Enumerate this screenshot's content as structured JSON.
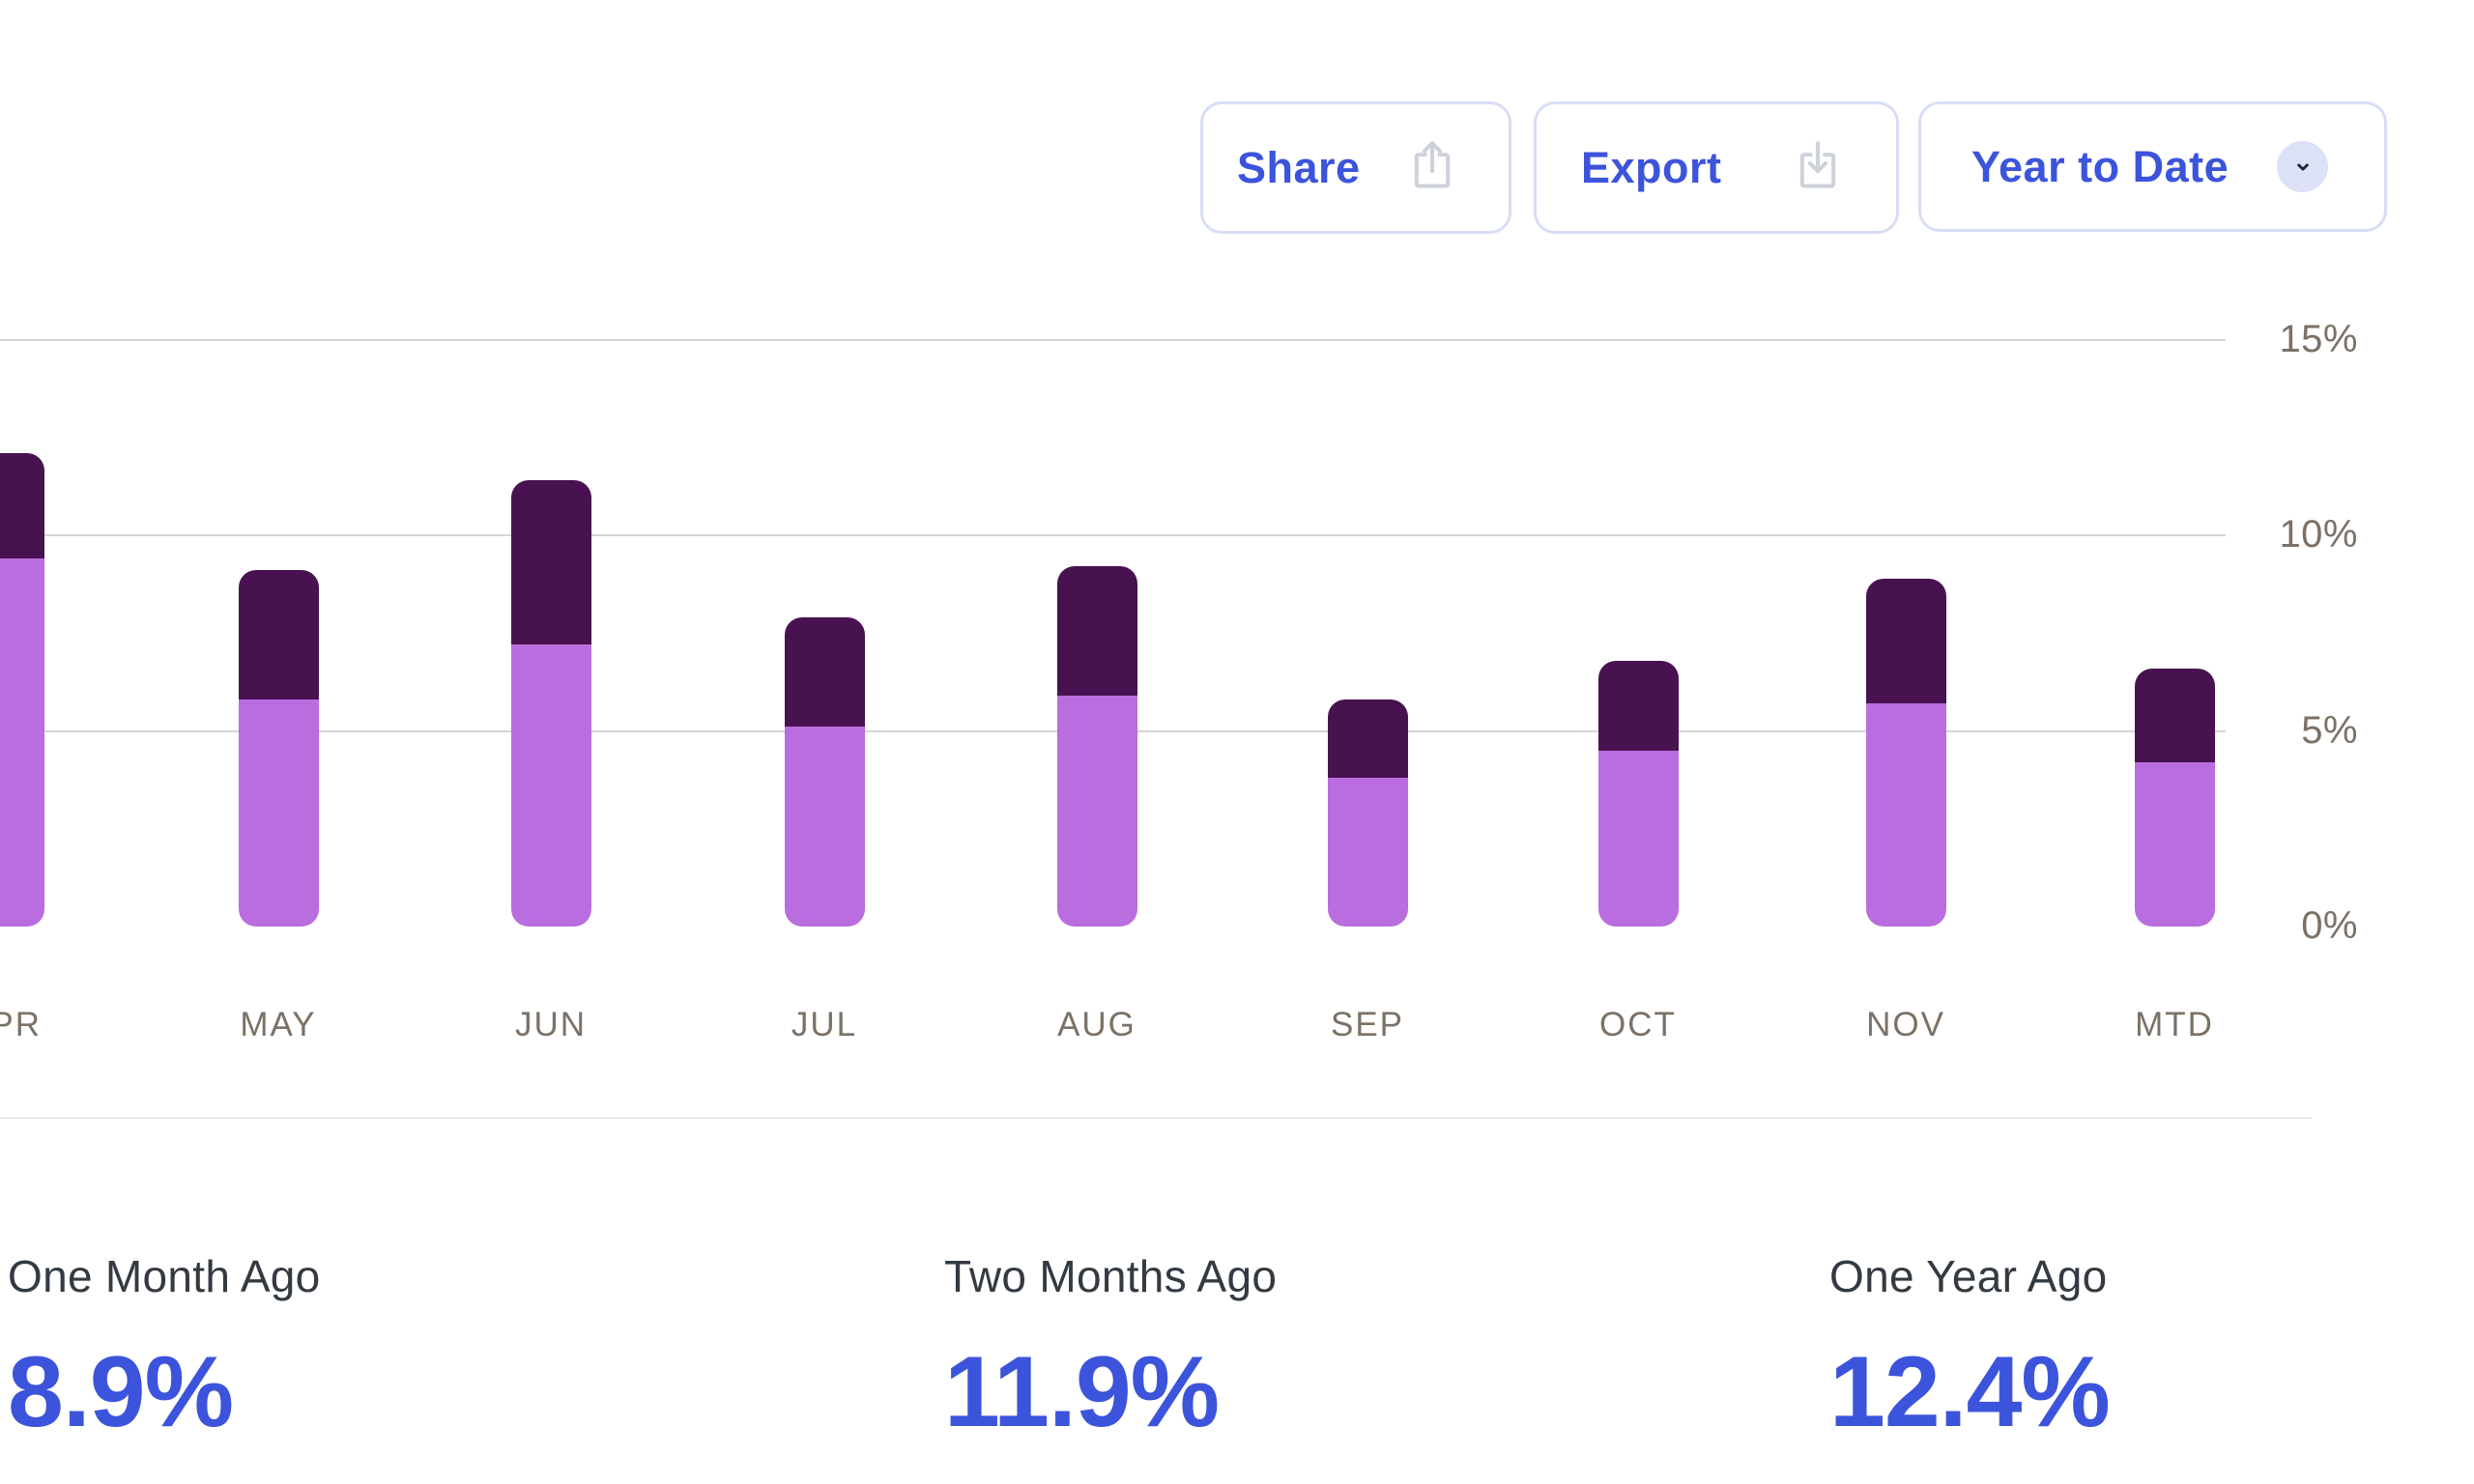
{
  "toolbar": {
    "share_label": "Share",
    "export_label": "Export",
    "period_selector_label": "Year to Date"
  },
  "chart_data": {
    "type": "bar",
    "stacked": true,
    "title": "",
    "xlabel": "",
    "ylabel": "",
    "categories": [
      "APR",
      "MAY",
      "JUN",
      "JUL",
      "AUG",
      "SEP",
      "OCT",
      "NOV",
      "MTD"
    ],
    "series": [
      {
        "name": "lower-segment",
        "color": "#BA6DDE",
        "values": [
          9.4,
          5.8,
          7.2,
          5.1,
          5.9,
          3.8,
          4.5,
          5.7,
          4.2
        ]
      },
      {
        "name": "upper-segment",
        "color": "#481250",
        "values": [
          2.7,
          3.3,
          4.2,
          2.8,
          3.3,
          2.0,
          2.3,
          3.2,
          2.4
        ]
      }
    ],
    "totals": [
      12.1,
      9.1,
      11.4,
      7.9,
      9.2,
      5.8,
      6.8,
      8.9,
      6.6
    ],
    "y_axis": {
      "side": "right",
      "ticks": [
        "15%",
        "10%",
        "5%",
        "0%"
      ],
      "tick_values": [
        15,
        10,
        5,
        0
      ],
      "min": 0,
      "max": 15
    },
    "gridline_values": [
      15,
      10,
      5
    ],
    "legend": "none",
    "notes": "First bar (APR) and its label are clipped by the left edge of the viewport"
  },
  "stats": [
    {
      "label": "One Month Ago",
      "value": "8.9%"
    },
    {
      "label": "Two Months Ago",
      "value": "11.9%"
    },
    {
      "label": "One Year Ago",
      "value": "12.4%"
    }
  ],
  "colors": {
    "accent_blue": "#3C54DB",
    "button_border": "#D8DDF6",
    "chevron_circle_bg": "#DCE1F8",
    "icon_gray": "#CDD1DA",
    "axis_text": "#7B7166",
    "gridline": "#D5D5D5",
    "divider": "#E9E9E9",
    "stat_label_text": "#343A41",
    "bar_light_purple": "#BA6DDE",
    "bar_dark_purple": "#481250"
  }
}
